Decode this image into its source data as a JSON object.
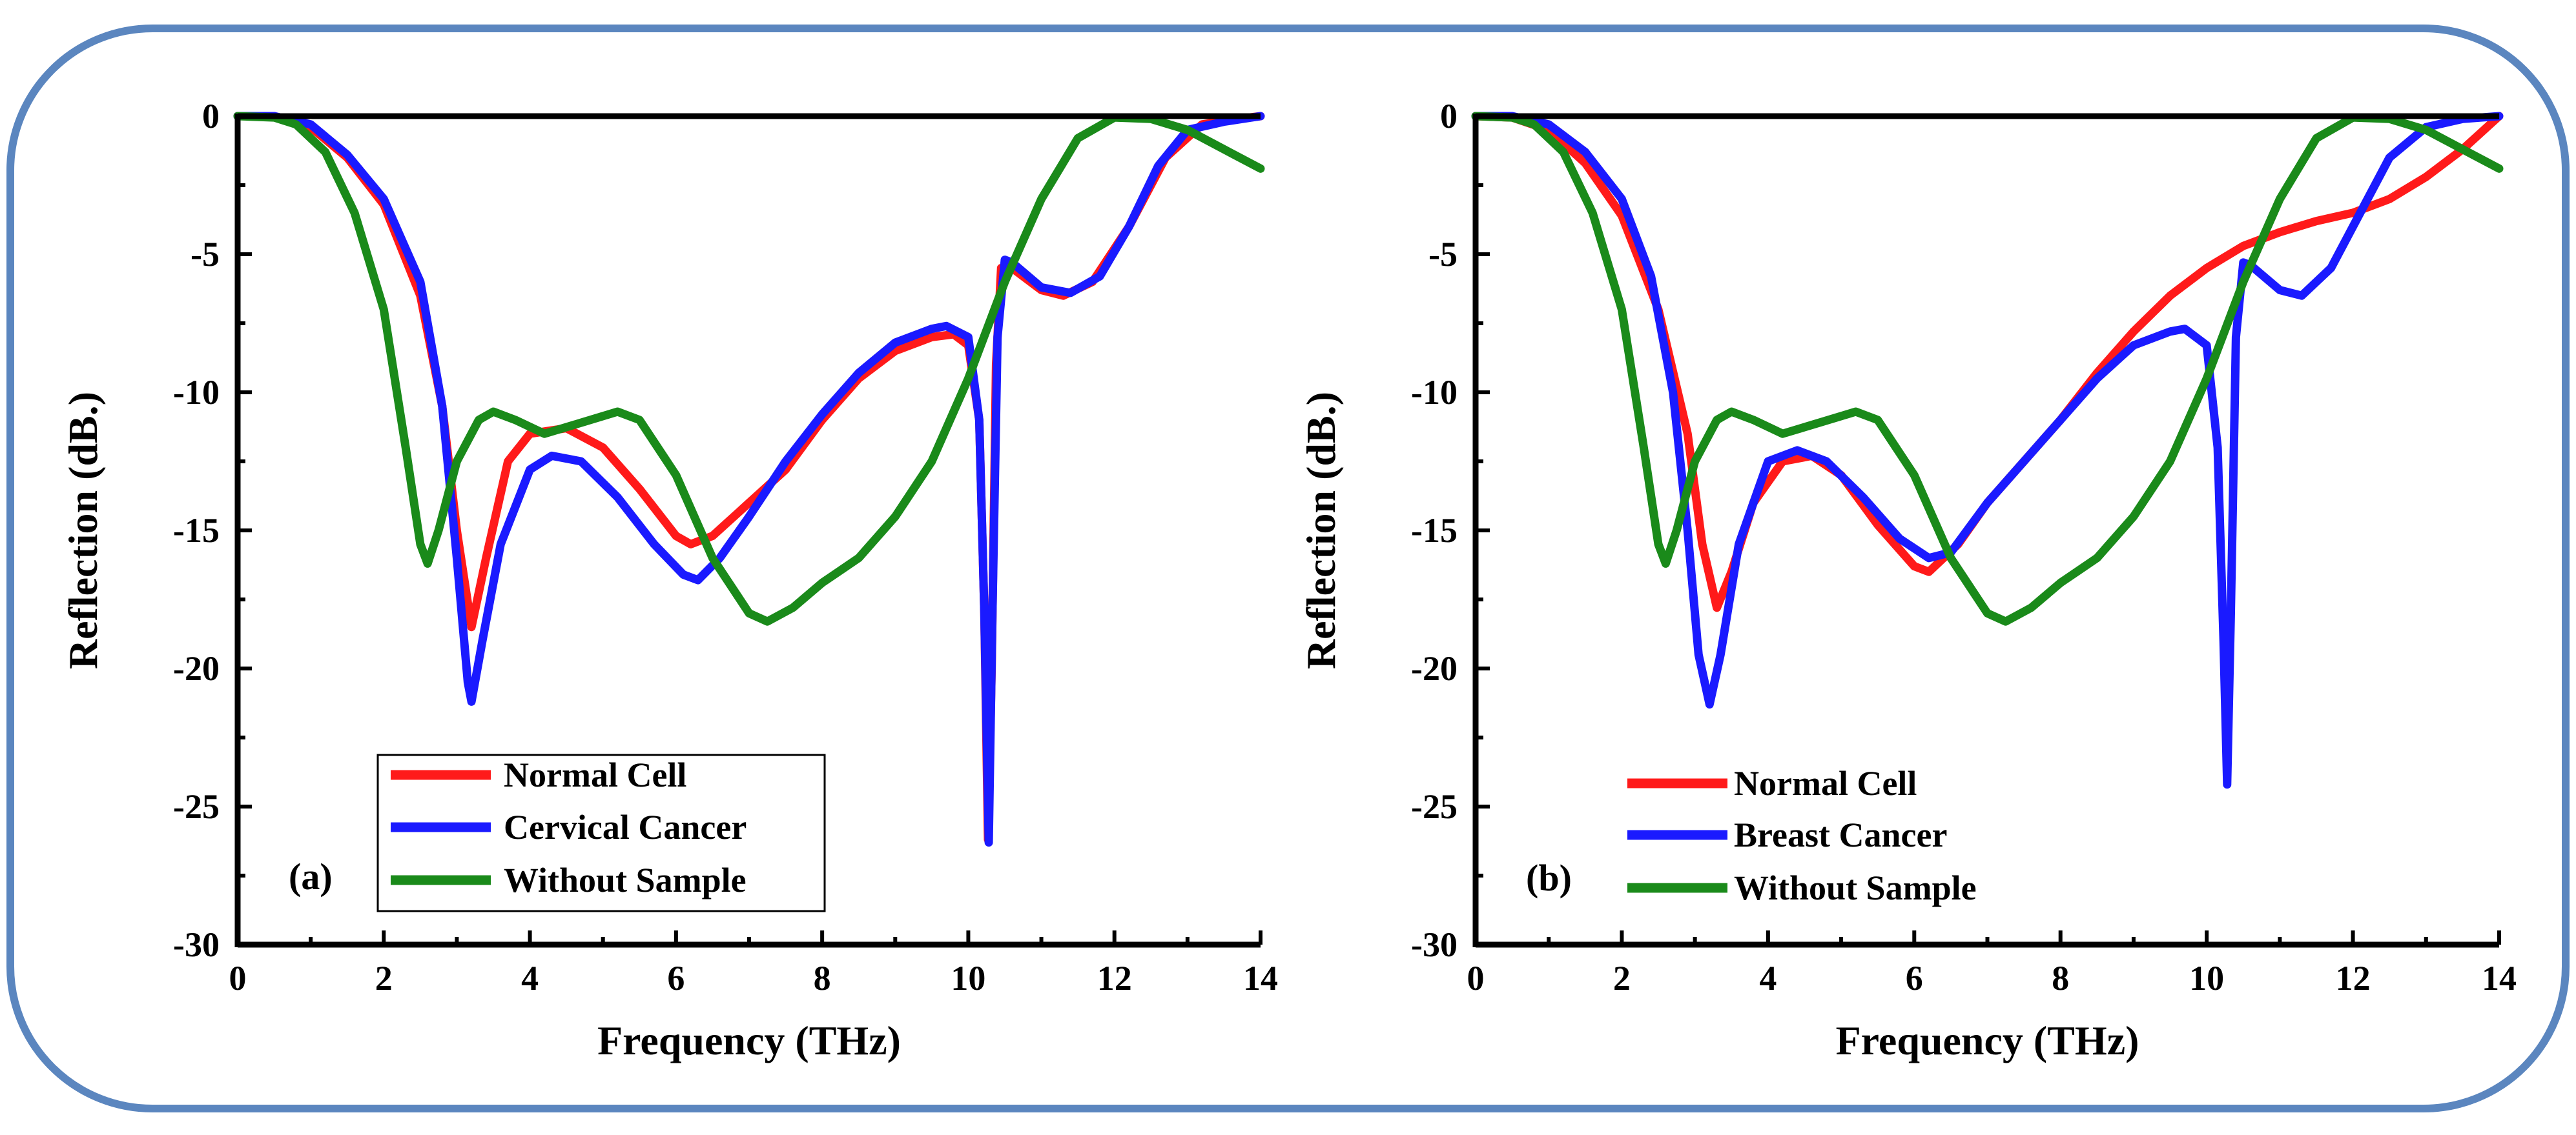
{
  "colors": {
    "normal": "#ff1a1a",
    "cancer": "#1a1aff",
    "without": "#1a8a1a",
    "frame": "#5b86bf"
  },
  "chart_data": [
    {
      "type": "line",
      "panel_label": "(a)",
      "xlabel": "Frequency (THz)",
      "ylabel": "Reflection (dB.)",
      "xlim": [
        0,
        14
      ],
      "ylim": [
        -30,
        0
      ],
      "xticks": [
        "0",
        "2",
        "4",
        "6",
        "8",
        "10",
        "12",
        "14"
      ],
      "yticks": [
        "0",
        "-5",
        "-10",
        "-15",
        "-20",
        "-25",
        "-30"
      ],
      "legend": {
        "placement": "bottom-center",
        "entries": [
          "Normal Cell",
          "Cervical Cancer",
          "Without Sample"
        ]
      },
      "series": [
        {
          "name": "Normal Cell",
          "color_key": "normal",
          "points": [
            [
              0,
              0
            ],
            [
              0.5,
              0
            ],
            [
              1,
              -0.4
            ],
            [
              1.5,
              -1.5
            ],
            [
              2,
              -3.2
            ],
            [
              2.5,
              -6.5
            ],
            [
              2.8,
              -10.5
            ],
            [
              3,
              -15
            ],
            [
              3.2,
              -18.5
            ],
            [
              3.4,
              -16
            ],
            [
              3.7,
              -12.5
            ],
            [
              4,
              -11.5
            ],
            [
              4.5,
              -11.3
            ],
            [
              5,
              -12
            ],
            [
              5.5,
              -13.5
            ],
            [
              6,
              -15.2
            ],
            [
              6.2,
              -15.5
            ],
            [
              6.5,
              -15.2
            ],
            [
              7,
              -14
            ],
            [
              7.5,
              -12.8
            ],
            [
              8,
              -11
            ],
            [
              8.5,
              -9.5
            ],
            [
              9,
              -8.5
            ],
            [
              9.5,
              -8
            ],
            [
              9.8,
              -7.9
            ],
            [
              10,
              -8.3
            ],
            [
              10.15,
              -11
            ],
            [
              10.22,
              -18
            ],
            [
              10.27,
              -26.2
            ],
            [
              10.32,
              -20
            ],
            [
              10.38,
              -9
            ],
            [
              10.45,
              -5.5
            ],
            [
              10.6,
              -5.5
            ],
            [
              11,
              -6.3
            ],
            [
              11.3,
              -6.5
            ],
            [
              11.7,
              -6
            ],
            [
              12.2,
              -4
            ],
            [
              12.7,
              -1.5
            ],
            [
              13.2,
              -0.3
            ],
            [
              13.7,
              -0.1
            ],
            [
              14,
              0
            ]
          ]
        },
        {
          "name": "Cervical Cancer",
          "color_key": "cancer",
          "points": [
            [
              0,
              0
            ],
            [
              0.5,
              0
            ],
            [
              1,
              -0.3
            ],
            [
              1.5,
              -1.4
            ],
            [
              2,
              -3
            ],
            [
              2.5,
              -6
            ],
            [
              2.8,
              -10.5
            ],
            [
              3,
              -16
            ],
            [
              3.15,
              -20.5
            ],
            [
              3.2,
              -21.2
            ],
            [
              3.35,
              -19
            ],
            [
              3.6,
              -15.5
            ],
            [
              4,
              -12.8
            ],
            [
              4.3,
              -12.3
            ],
            [
              4.7,
              -12.5
            ],
            [
              5.2,
              -13.8
            ],
            [
              5.7,
              -15.5
            ],
            [
              6.1,
              -16.6
            ],
            [
              6.3,
              -16.8
            ],
            [
              6.6,
              -16
            ],
            [
              7,
              -14.5
            ],
            [
              7.5,
              -12.5
            ],
            [
              8,
              -10.8
            ],
            [
              8.5,
              -9.3
            ],
            [
              9,
              -8.2
            ],
            [
              9.5,
              -7.7
            ],
            [
              9.7,
              -7.6
            ],
            [
              10,
              -8
            ],
            [
              10.15,
              -11
            ],
            [
              10.22,
              -18
            ],
            [
              10.28,
              -26.3
            ],
            [
              10.33,
              -18
            ],
            [
              10.4,
              -8
            ],
            [
              10.5,
              -5.2
            ],
            [
              10.6,
              -5.3
            ],
            [
              11,
              -6.2
            ],
            [
              11.4,
              -6.4
            ],
            [
              11.8,
              -5.8
            ],
            [
              12.2,
              -4
            ],
            [
              12.6,
              -1.8
            ],
            [
              13,
              -0.5
            ],
            [
              13.5,
              -0.2
            ],
            [
              14,
              0
            ]
          ]
        },
        {
          "name": "Without Sample",
          "color_key": "without",
          "points": [
            [
              0,
              0
            ],
            [
              0.5,
              -0.05
            ],
            [
              0.8,
              -0.3
            ],
            [
              1.2,
              -1.3
            ],
            [
              1.6,
              -3.5
            ],
            [
              2,
              -7
            ],
            [
              2.3,
              -12
            ],
            [
              2.5,
              -15.5
            ],
            [
              2.6,
              -16.2
            ],
            [
              2.75,
              -15
            ],
            [
              3,
              -12.5
            ],
            [
              3.3,
              -11
            ],
            [
              3.5,
              -10.7
            ],
            [
              3.8,
              -11
            ],
            [
              4.2,
              -11.5
            ],
            [
              4.7,
              -11.1
            ],
            [
              5.2,
              -10.7
            ],
            [
              5.5,
              -11
            ],
            [
              6,
              -13
            ],
            [
              6.5,
              -16
            ],
            [
              7,
              -18
            ],
            [
              7.25,
              -18.3
            ],
            [
              7.6,
              -17.8
            ],
            [
              8,
              -16.9
            ],
            [
              8.5,
              -16
            ],
            [
              9,
              -14.5
            ],
            [
              9.5,
              -12.5
            ],
            [
              10,
              -9.5
            ],
            [
              10.5,
              -6
            ],
            [
              11,
              -3
            ],
            [
              11.5,
              -0.8
            ],
            [
              12,
              -0.05
            ],
            [
              12.5,
              -0.1
            ],
            [
              13,
              -0.5
            ],
            [
              13.5,
              -1.2
            ],
            [
              14,
              -1.9
            ]
          ]
        }
      ]
    },
    {
      "type": "line",
      "panel_label": "(b)",
      "xlabel": "Frequency (THz)",
      "ylabel": "Reflection (dB.)",
      "xlim": [
        0,
        14
      ],
      "ylim": [
        -30,
        0
      ],
      "xticks": [
        "0",
        "2",
        "4",
        "6",
        "8",
        "10",
        "12",
        "14"
      ],
      "yticks": [
        "0",
        "-5",
        "-10",
        "-15",
        "-20",
        "-25",
        "-30"
      ],
      "legend": {
        "placement": "bottom-left",
        "entries": [
          "Normal Cell",
          "Breast Cancer",
          "Without Sample"
        ]
      },
      "series": [
        {
          "name": "Normal Cell",
          "color_key": "normal",
          "points": [
            [
              0,
              0
            ],
            [
              0.5,
              -0.05
            ],
            [
              1,
              -0.5
            ],
            [
              1.5,
              -1.7
            ],
            [
              2,
              -3.6
            ],
            [
              2.5,
              -7
            ],
            [
              2.9,
              -11.5
            ],
            [
              3.1,
              -15.5
            ],
            [
              3.3,
              -17.8
            ],
            [
              3.5,
              -16.5
            ],
            [
              3.8,
              -14
            ],
            [
              4.2,
              -12.5
            ],
            [
              4.6,
              -12.3
            ],
            [
              5,
              -13
            ],
            [
              5.5,
              -14.8
            ],
            [
              6,
              -16.3
            ],
            [
              6.2,
              -16.5
            ],
            [
              6.6,
              -15.5
            ],
            [
              7,
              -14
            ],
            [
              7.5,
              -12.5
            ],
            [
              8,
              -11
            ],
            [
              8.5,
              -9.3
            ],
            [
              9,
              -7.8
            ],
            [
              9.5,
              -6.5
            ],
            [
              10,
              -5.5
            ],
            [
              10.5,
              -4.7
            ],
            [
              11,
              -4.2
            ],
            [
              11.5,
              -3.8
            ],
            [
              12,
              -3.5
            ],
            [
              12.5,
              -3
            ],
            [
              13,
              -2.2
            ],
            [
              13.5,
              -1.2
            ],
            [
              14,
              0
            ]
          ]
        },
        {
          "name": "Breast Cancer",
          "color_key": "cancer",
          "points": [
            [
              0,
              0
            ],
            [
              0.5,
              0
            ],
            [
              1,
              -0.3
            ],
            [
              1.5,
              -1.3
            ],
            [
              2,
              -3
            ],
            [
              2.4,
              -5.8
            ],
            [
              2.7,
              -10
            ],
            [
              2.9,
              -15
            ],
            [
              3.05,
              -19.5
            ],
            [
              3.2,
              -21.3
            ],
            [
              3.35,
              -19.5
            ],
            [
              3.6,
              -15.5
            ],
            [
              4,
              -12.5
            ],
            [
              4.4,
              -12.1
            ],
            [
              4.8,
              -12.5
            ],
            [
              5.3,
              -13.8
            ],
            [
              5.8,
              -15.3
            ],
            [
              6.2,
              -16
            ],
            [
              6.5,
              -15.8
            ],
            [
              7,
              -14
            ],
            [
              7.5,
              -12.5
            ],
            [
              8,
              -11
            ],
            [
              8.5,
              -9.5
            ],
            [
              9,
              -8.3
            ],
            [
              9.5,
              -7.8
            ],
            [
              9.7,
              -7.7
            ],
            [
              10,
              -8.3
            ],
            [
              10.15,
              -12
            ],
            [
              10.23,
              -19
            ],
            [
              10.28,
              -24.2
            ],
            [
              10.33,
              -18
            ],
            [
              10.4,
              -8
            ],
            [
              10.5,
              -5.3
            ],
            [
              10.6,
              -5.4
            ],
            [
              11,
              -6.3
            ],
            [
              11.3,
              -6.5
            ],
            [
              11.7,
              -5.5
            ],
            [
              12.1,
              -3.5
            ],
            [
              12.5,
              -1.5
            ],
            [
              13,
              -0.4
            ],
            [
              13.5,
              -0.1
            ],
            [
              14,
              0
            ]
          ]
        },
        {
          "name": "Without Sample",
          "color_key": "without",
          "points": [
            [
              0,
              0
            ],
            [
              0.5,
              -0.05
            ],
            [
              0.8,
              -0.3
            ],
            [
              1.2,
              -1.3
            ],
            [
              1.6,
              -3.5
            ],
            [
              2,
              -7
            ],
            [
              2.3,
              -12
            ],
            [
              2.5,
              -15.5
            ],
            [
              2.6,
              -16.2
            ],
            [
              2.75,
              -15
            ],
            [
              3,
              -12.5
            ],
            [
              3.3,
              -11
            ],
            [
              3.5,
              -10.7
            ],
            [
              3.8,
              -11
            ],
            [
              4.2,
              -11.5
            ],
            [
              4.7,
              -11.1
            ],
            [
              5.2,
              -10.7
            ],
            [
              5.5,
              -11
            ],
            [
              6,
              -13
            ],
            [
              6.5,
              -16
            ],
            [
              7,
              -18
            ],
            [
              7.25,
              -18.3
            ],
            [
              7.6,
              -17.8
            ],
            [
              8,
              -16.9
            ],
            [
              8.5,
              -16
            ],
            [
              9,
              -14.5
            ],
            [
              9.5,
              -12.5
            ],
            [
              10,
              -9.5
            ],
            [
              10.5,
              -6
            ],
            [
              11,
              -3
            ],
            [
              11.5,
              -0.8
            ],
            [
              12,
              -0.05
            ],
            [
              12.5,
              -0.1
            ],
            [
              13,
              -0.5
            ],
            [
              13.5,
              -1.2
            ],
            [
              14,
              -1.9
            ]
          ]
        }
      ]
    }
  ]
}
